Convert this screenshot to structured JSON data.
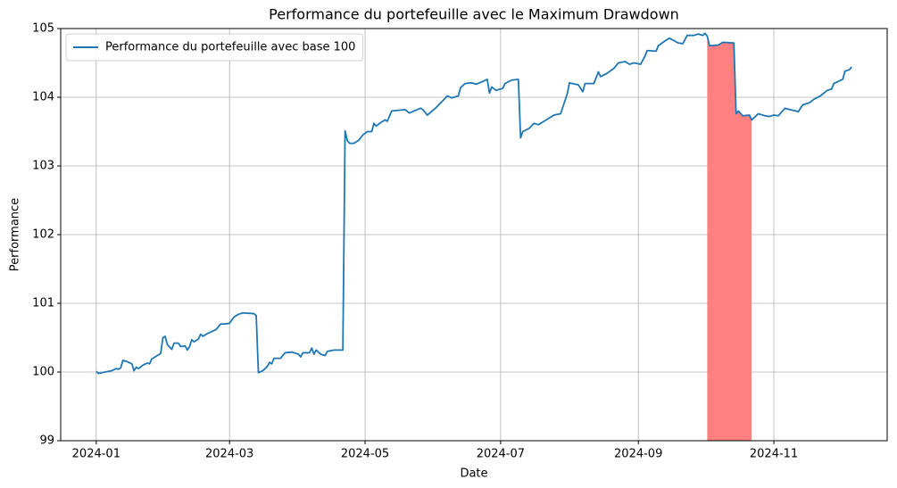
{
  "chart_data": {
    "type": "line",
    "title": "Performance du portefeuille avec le Maximum Drawdown",
    "x_label": "Date",
    "y_label": "Performance",
    "xlim": [
      -16,
      356
    ],
    "xticks": [
      {
        "value": 0,
        "label": "2024-01"
      },
      {
        "value": 60,
        "label": "2024-03"
      },
      {
        "value": 121,
        "label": "2024-05"
      },
      {
        "value": 182,
        "label": "2024-07"
      },
      {
        "value": 244,
        "label": "2024-09"
      },
      {
        "value": 305,
        "label": "2024-11"
      }
    ],
    "ylim": [
      99,
      105
    ],
    "yticks": [
      99,
      100,
      101,
      102,
      103,
      104,
      105
    ],
    "grid": true,
    "legend": "upper left",
    "x": [
      0,
      1,
      4,
      7,
      9,
      10,
      11,
      12,
      14,
      16,
      17,
      18,
      19,
      21,
      23,
      24,
      25,
      28,
      29,
      30,
      31,
      32,
      34,
      35,
      37,
      38,
      40,
      41,
      42,
      43,
      44,
      46,
      47,
      48,
      50,
      54,
      56,
      58,
      60,
      62,
      64,
      66,
      71,
      72,
      73,
      75,
      77,
      78,
      79,
      80,
      83,
      85,
      88,
      91,
      92,
      93,
      96,
      97,
      98,
      99,
      101,
      103,
      104,
      107,
      111,
      112,
      113,
      114,
      116,
      118,
      120,
      122,
      124,
      125,
      126,
      128,
      130,
      131,
      133,
      136,
      139,
      141,
      143,
      146,
      147,
      149,
      153,
      156,
      158,
      160,
      163,
      164,
      166,
      169,
      171,
      174,
      176,
      177,
      178,
      180,
      183,
      184,
      187,
      190,
      191,
      192,
      195,
      197,
      199,
      201,
      204,
      206,
      209,
      212,
      213,
      217,
      219,
      220,
      224,
      226,
      227,
      230,
      233,
      235,
      238,
      240,
      242,
      245,
      247,
      248,
      252,
      253,
      256,
      258,
      262,
      264,
      266,
      269,
      271,
      273,
      274,
      275,
      276,
      280,
      282,
      287,
      288,
      289,
      291,
      294,
      295,
      298,
      301,
      303,
      305,
      307,
      310,
      316,
      318,
      321,
      323,
      326,
      329,
      331,
      332,
      336,
      337,
      339,
      340
    ],
    "series": [
      {
        "name": "Performance du portefeuille avec base 100",
        "color": "#1f77b4",
        "values": [
          100.01,
          99.98,
          100.0,
          100.02,
          100.05,
          100.04,
          100.06,
          100.17,
          100.15,
          100.12,
          100.02,
          100.07,
          100.05,
          100.1,
          100.13,
          100.12,
          100.19,
          100.25,
          100.27,
          100.5,
          100.52,
          100.4,
          100.33,
          100.42,
          100.42,
          100.37,
          100.38,
          100.32,
          100.37,
          100.47,
          100.44,
          100.48,
          100.55,
          100.52,
          100.56,
          100.62,
          100.7,
          100.7,
          100.71,
          100.8,
          100.84,
          100.86,
          100.85,
          100.82,
          99.99,
          100.02,
          100.08,
          100.14,
          100.12,
          100.2,
          100.2,
          100.28,
          100.29,
          100.26,
          100.22,
          100.28,
          100.28,
          100.35,
          100.26,
          100.32,
          100.26,
          100.24,
          100.3,
          100.32,
          100.32,
          103.51,
          103.37,
          103.33,
          103.33,
          103.37,
          103.45,
          103.5,
          103.5,
          103.62,
          103.58,
          103.63,
          103.67,
          103.65,
          103.8,
          103.81,
          103.82,
          103.77,
          103.8,
          103.84,
          103.82,
          103.74,
          103.85,
          103.95,
          104.02,
          103.99,
          104.02,
          104.14,
          104.2,
          104.21,
          104.19,
          104.23,
          104.26,
          104.06,
          104.15,
          104.1,
          104.13,
          104.2,
          104.25,
          104.26,
          103.41,
          103.5,
          103.55,
          103.62,
          103.6,
          103.64,
          103.7,
          103.74,
          103.76,
          104.05,
          104.21,
          104.18,
          104.08,
          104.2,
          104.2,
          104.37,
          104.3,
          104.35,
          104.42,
          104.5,
          104.52,
          104.48,
          104.5,
          104.48,
          104.6,
          104.68,
          104.67,
          104.75,
          104.82,
          104.86,
          104.79,
          104.78,
          104.9,
          104.9,
          104.92,
          104.9,
          104.93,
          104.89,
          104.75,
          104.76,
          104.8,
          104.79,
          103.76,
          103.8,
          103.73,
          103.74,
          103.67,
          103.76,
          103.73,
          103.72,
          103.74,
          103.73,
          103.84,
          103.79,
          103.89,
          103.92,
          103.97,
          104.02,
          104.1,
          104.12,
          104.2,
          104.26,
          104.38,
          104.4,
          104.44
        ]
      }
    ],
    "highlight": {
      "x": [
        275,
        295
      ],
      "color": "#ff8080"
    }
  }
}
